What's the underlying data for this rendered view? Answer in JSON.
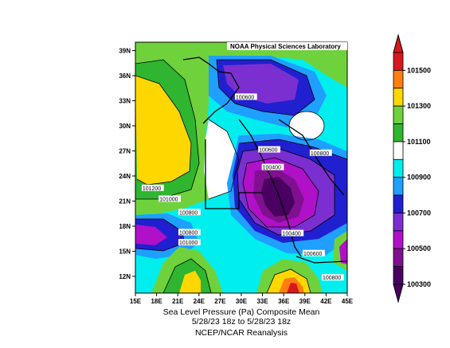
{
  "map": {
    "credit": "NOAA Physical Sciences Laboratory",
    "lat_labels": [
      "39N",
      "36N",
      "33N",
      "30N",
      "27N",
      "24N",
      "21N",
      "18N",
      "15N",
      "12N"
    ],
    "lon_labels": [
      "15E",
      "18E",
      "21E",
      "24E",
      "27E",
      "30E",
      "33E",
      "36E",
      "39E",
      "42E",
      "45E"
    ],
    "contour_labels": [
      {
        "text": "100600",
        "lon": 29.2,
        "lat": 33.2
      },
      {
        "text": "100600",
        "lon": 32.5,
        "lat": 26.9
      },
      {
        "text": "100800",
        "lon": 39.8,
        "lat": 26.5
      },
      {
        "text": "100400",
        "lon": 33.0,
        "lat": 24.8
      },
      {
        "text": "101200",
        "lon": 16.0,
        "lat": 22.3
      },
      {
        "text": "101000",
        "lon": 18.4,
        "lat": 21.0
      },
      {
        "text": "100800",
        "lon": 21.2,
        "lat": 19.4
      },
      {
        "text": "100800",
        "lon": 21.2,
        "lat": 17.0
      },
      {
        "text": "101000",
        "lon": 21.2,
        "lat": 15.8
      },
      {
        "text": "100400",
        "lon": 35.8,
        "lat": 16.9
      },
      {
        "text": "100600",
        "lon": 38.8,
        "lat": 14.5
      },
      {
        "text": "100800",
        "lon": 41.5,
        "lat": 11.6
      }
    ]
  },
  "colorbar": {
    "labels": [
      "101500",
      "101300",
      "101100",
      "100900",
      "100700",
      "100500",
      "100300"
    ],
    "colors": [
      "#d7191c",
      "#ff7f0e",
      "#ffd700",
      "#6fd23c",
      "#2fb52f",
      "#ffffff",
      "#00eeee",
      "#1f9fff",
      "#2020d0",
      "#7b2fd0",
      "#b010c8",
      "#801090",
      "#4a0060"
    ]
  },
  "caption": {
    "line1": "Sea Level Pressure (Pa)   Composite Mean",
    "line2": "5/28/23 18z  to 5/28/23 18z",
    "line3": "NCEP/NCAR Reanalysis"
  }
}
